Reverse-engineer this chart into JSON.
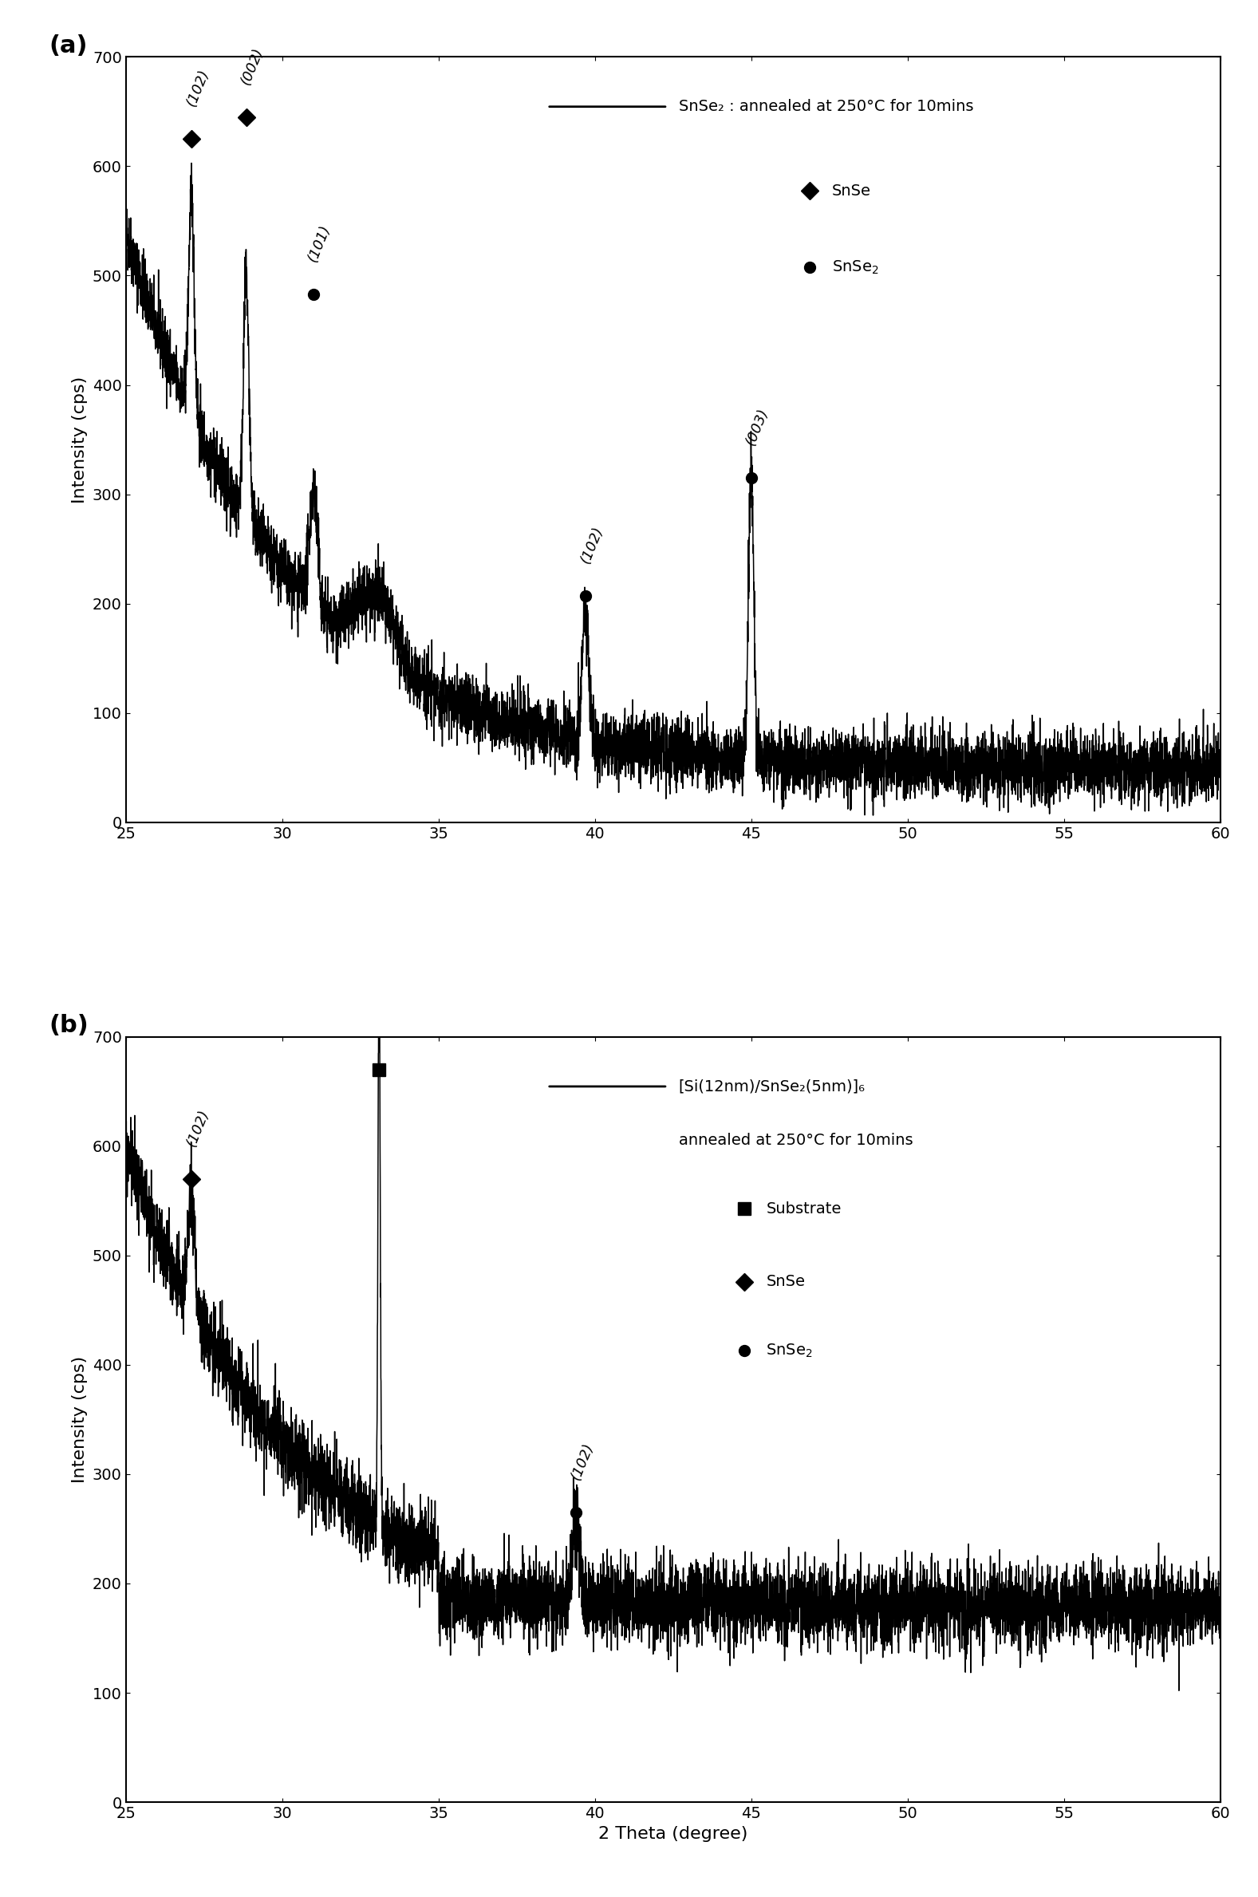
{
  "panel_a": {
    "ylabel": "Intensity (cps)",
    "legend_line_label": "SnSe₂ : annealed at 250°C for 10mins",
    "xlim": [
      25,
      60
    ],
    "ylim": [
      0,
      700
    ],
    "xticks": [
      25,
      30,
      35,
      40,
      45,
      50,
      55,
      60
    ],
    "yticks": [
      0,
      100,
      200,
      300,
      400,
      500,
      600,
      700
    ],
    "peaks": [
      {
        "x": 27.1,
        "y_marker": 625,
        "label": "(102)",
        "type": "SnSe"
      },
      {
        "x": 28.85,
        "y_marker": 645,
        "label": "(002)",
        "type": "SnSe"
      },
      {
        "x": 31.0,
        "y_marker": 483,
        "label": "(101)",
        "type": "SnSe2"
      },
      {
        "x": 39.7,
        "y_marker": 207,
        "label": "(102)",
        "type": "SnSe2"
      },
      {
        "x": 45.0,
        "y_marker": 315,
        "label": "(003)",
        "type": "SnSe2"
      }
    ]
  },
  "panel_b": {
    "legend_line1": "[Si(12nm)/SnSe₂(5nm)]₆",
    "legend_line2": "annealed at 250°C for 10mins",
    "xlabel": "2 Theta (degree)",
    "ylabel": "Intensity (cps)",
    "xlim": [
      25,
      60
    ],
    "ylim": [
      0,
      700
    ],
    "xticks": [
      25,
      30,
      35,
      40,
      45,
      50,
      55,
      60
    ],
    "yticks": [
      0,
      100,
      200,
      300,
      400,
      500,
      600,
      700
    ],
    "peaks": [
      {
        "x": 27.1,
        "y_marker": 570,
        "label": "(102)",
        "type": "SnSe"
      },
      {
        "x": 33.1,
        "y_marker": 670,
        "label": "",
        "type": "Substrate"
      },
      {
        "x": 39.4,
        "y_marker": 265,
        "label": "(102)",
        "type": "SnSe2"
      }
    ]
  },
  "line_color": "#000000",
  "label_fontsize": 16,
  "tick_fontsize": 14,
  "annot_fontsize": 13,
  "legend_fontsize": 14,
  "panel_label_fontsize": 22,
  "background_color": "#ffffff"
}
